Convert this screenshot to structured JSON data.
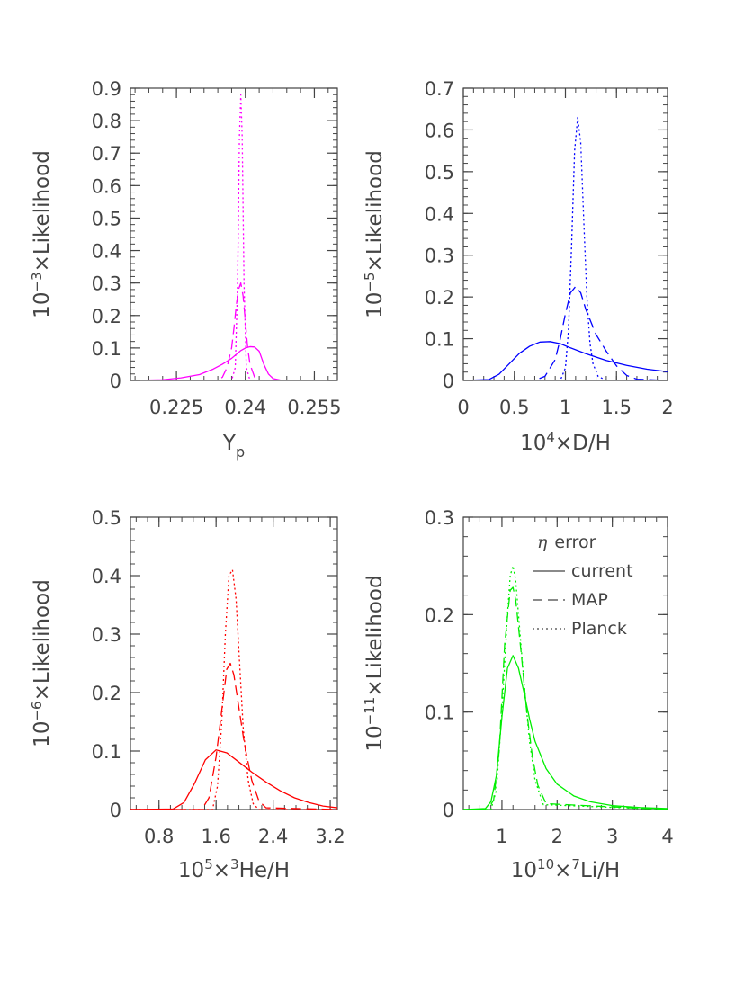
{
  "chart_data": [
    {
      "type": "line",
      "panel": "top-left",
      "color": "#ff00ff",
      "xlabel": "Y",
      "xlabel_sub": "p",
      "ylabel_prefix": "10",
      "ylabel_exp": "−3",
      "ylabel_suffix": "×Likelihood",
      "xlim": [
        0.215,
        0.26
      ],
      "ylim": [
        0,
        0.9
      ],
      "x_ticks": [
        {
          "value": 0.225,
          "label": "0.225"
        },
        {
          "value": 0.24,
          "label": "0.24"
        },
        {
          "value": 0.255,
          "label": "0.255"
        }
      ],
      "y_ticks": [
        {
          "value": 0,
          "label": "0"
        },
        {
          "value": 0.1,
          "label": "0.1"
        },
        {
          "value": 0.2,
          "label": "0.2"
        },
        {
          "value": 0.3,
          "label": "0.3"
        },
        {
          "value": 0.4,
          "label": "0.4"
        },
        {
          "value": 0.5,
          "label": "0.5"
        },
        {
          "value": 0.6,
          "label": "0.6"
        },
        {
          "value": 0.7,
          "label": "0.7"
        },
        {
          "value": 0.8,
          "label": "0.8"
        },
        {
          "value": 0.9,
          "label": "0.9"
        }
      ],
      "series": [
        {
          "style": "solid",
          "x": [
            0.215,
            0.222,
            0.226,
            0.23,
            0.233,
            0.235,
            0.237,
            0.238,
            0.239,
            0.24,
            0.241,
            0.242,
            0.243,
            0.2435,
            0.244,
            0.245,
            0.246,
            0.248,
            0.25,
            0.26
          ],
          "y": [
            0,
            0.002,
            0.008,
            0.018,
            0.035,
            0.05,
            0.068,
            0.08,
            0.092,
            0.1,
            0.104,
            0.103,
            0.09,
            0.07,
            0.05,
            0.02,
            0.006,
            0,
            0,
            0
          ]
        },
        {
          "style": "dashed",
          "x": [
            0.215,
            0.234,
            0.235,
            0.236,
            0.237,
            0.2375,
            0.238,
            0.2385,
            0.239,
            0.2395,
            0.24,
            0.2405,
            0.241,
            0.242,
            0.243,
            0.26
          ],
          "y": [
            0,
            0,
            0.01,
            0.04,
            0.1,
            0.16,
            0.23,
            0.28,
            0.3,
            0.26,
            0.18,
            0.1,
            0.05,
            0.01,
            0,
            0
          ]
        },
        {
          "style": "dotted",
          "x": [
            0.215,
            0.237,
            0.2378,
            0.2383,
            0.2387,
            0.239,
            0.2393,
            0.2397,
            0.2402,
            0.241,
            0.26
          ],
          "y": [
            0,
            0,
            0.04,
            0.3,
            0.75,
            0.88,
            0.75,
            0.3,
            0.04,
            0,
            0
          ]
        }
      ]
    },
    {
      "type": "line",
      "panel": "top-right",
      "color": "#0000ff",
      "xlabel_prefix": "10",
      "xlabel_exp": "4",
      "xlabel_suffix": "×D/H",
      "ylabel_prefix": "10",
      "ylabel_exp": "−5",
      "ylabel_suffix": "×Likelihood",
      "xlim": [
        0,
        2
      ],
      "ylim": [
        0,
        0.7
      ],
      "x_ticks": [
        {
          "value": 0,
          "label": "0"
        },
        {
          "value": 0.5,
          "label": "0.5"
        },
        {
          "value": 1,
          "label": "1"
        },
        {
          "value": 1.5,
          "label": "1.5"
        },
        {
          "value": 2,
          "label": "2"
        }
      ],
      "y_ticks": [
        {
          "value": 0,
          "label": "0"
        },
        {
          "value": 0.1,
          "label": "0.1"
        },
        {
          "value": 0.2,
          "label": "0.2"
        },
        {
          "value": 0.3,
          "label": "0.3"
        },
        {
          "value": 0.4,
          "label": "0.4"
        },
        {
          "value": 0.5,
          "label": "0.5"
        },
        {
          "value": 0.6,
          "label": "0.6"
        },
        {
          "value": 0.7,
          "label": "0.7"
        }
      ],
      "series": [
        {
          "style": "solid",
          "x": [
            0,
            0.25,
            0.35,
            0.45,
            0.55,
            0.65,
            0.75,
            0.85,
            0.95,
            1.05,
            1.2,
            1.4,
            1.6,
            1.8,
            2
          ],
          "y": [
            0,
            0.002,
            0.015,
            0.04,
            0.065,
            0.082,
            0.092,
            0.093,
            0.088,
            0.078,
            0.064,
            0.048,
            0.036,
            0.027,
            0.021
          ]
        },
        {
          "style": "dashed",
          "x": [
            0,
            0.7,
            0.8,
            0.9,
            0.95,
            1,
            1.05,
            1.1,
            1.15,
            1.2,
            1.3,
            1.4,
            1.5,
            1.6,
            1.7,
            2
          ],
          "y": [
            0,
            0,
            0.01,
            0.05,
            0.1,
            0.16,
            0.21,
            0.225,
            0.21,
            0.17,
            0.11,
            0.07,
            0.035,
            0.012,
            0.003,
            0
          ]
        },
        {
          "style": "dotted",
          "x": [
            0,
            0.95,
            1,
            1.03,
            1.06,
            1.09,
            1.12,
            1.15,
            1.18,
            1.21,
            1.24,
            1.27,
            1.32,
            1.4,
            2
          ],
          "y": [
            0,
            0,
            0.03,
            0.12,
            0.32,
            0.55,
            0.63,
            0.57,
            0.38,
            0.2,
            0.09,
            0.04,
            0.01,
            0,
            0
          ]
        }
      ]
    },
    {
      "type": "line",
      "panel": "bottom-left",
      "color": "#ff0000",
      "xlabel_prefix": "10",
      "xlabel_exp": "5",
      "xlabel_mid": "×",
      "xlabel_exp2": "3",
      "xlabel_suffix": "He/H",
      "ylabel_prefix": "10",
      "ylabel_exp": "−6",
      "ylabel_suffix": "×Likelihood",
      "xlim": [
        0.4,
        3.3
      ],
      "ylim": [
        0,
        0.5
      ],
      "x_ticks": [
        {
          "value": 0.8,
          "label": "0.8"
        },
        {
          "value": 1.6,
          "label": "1.6"
        },
        {
          "value": 2.4,
          "label": "2.4"
        },
        {
          "value": 3.2,
          "label": "3.2"
        }
      ],
      "y_ticks": [
        {
          "value": 0,
          "label": "0"
        },
        {
          "value": 0.1,
          "label": "0.1"
        },
        {
          "value": 0.2,
          "label": "0.2"
        },
        {
          "value": 0.3,
          "label": "0.3"
        },
        {
          "value": 0.4,
          "label": "0.4"
        },
        {
          "value": 0.5,
          "label": "0.5"
        }
      ],
      "series": [
        {
          "style": "solid",
          "x": [
            0.4,
            1.0,
            1.15,
            1.3,
            1.45,
            1.6,
            1.75,
            1.9,
            2.1,
            2.3,
            2.5,
            2.7,
            2.9,
            3.1,
            3.3
          ],
          "y": [
            0,
            0.001,
            0.012,
            0.045,
            0.085,
            0.102,
            0.097,
            0.083,
            0.064,
            0.047,
            0.032,
            0.02,
            0.012,
            0.006,
            0.003
          ]
        },
        {
          "style": "dashed",
          "x": [
            0.4,
            1.4,
            1.5,
            1.6,
            1.7,
            1.75,
            1.8,
            1.85,
            1.9,
            2.0,
            2.1,
            2.2,
            2.3,
            3.3
          ],
          "y": [
            0,
            0,
            0.02,
            0.09,
            0.19,
            0.24,
            0.25,
            0.23,
            0.19,
            0.11,
            0.05,
            0.015,
            0.003,
            0
          ]
        },
        {
          "style": "dotted",
          "x": [
            0.4,
            1.55,
            1.62,
            1.68,
            1.73,
            1.78,
            1.83,
            1.88,
            1.93,
            1.98,
            2.05,
            2.12,
            2.2,
            3.3
          ],
          "y": [
            0,
            0,
            0.04,
            0.15,
            0.3,
            0.4,
            0.41,
            0.36,
            0.25,
            0.14,
            0.05,
            0.01,
            0,
            0
          ]
        }
      ]
    },
    {
      "type": "line",
      "panel": "bottom-right",
      "color": "#00ee00",
      "xlabel_prefix": "10",
      "xlabel_exp": "10",
      "xlabel_mid": "×",
      "xlabel_exp2": "7",
      "xlabel_suffix": "Li/H",
      "ylabel_prefix": "10",
      "ylabel_exp": "−11",
      "ylabel_suffix": "×Likelihood",
      "xlim": [
        0.3,
        4
      ],
      "ylim": [
        0,
        0.3
      ],
      "x_ticks": [
        {
          "value": 1,
          "label": "1"
        },
        {
          "value": 2,
          "label": "2"
        },
        {
          "value": 3,
          "label": "3"
        },
        {
          "value": 4,
          "label": "4"
        }
      ],
      "y_ticks": [
        {
          "value": 0,
          "label": "0"
        },
        {
          "value": 0.1,
          "label": "0.1"
        },
        {
          "value": 0.2,
          "label": "0.2"
        },
        {
          "value": 0.3,
          "label": "0.3"
        }
      ],
      "legend": {
        "title_symbol": "η",
        "title_text": "error",
        "entries": [
          {
            "style": "solid",
            "label": "current"
          },
          {
            "style": "dashed",
            "label": "MAP"
          },
          {
            "style": "dotted",
            "label": "Planck"
          }
        ]
      },
      "series": [
        {
          "style": "solid",
          "x": [
            0.3,
            0.7,
            0.8,
            0.9,
            1.0,
            1.1,
            1.2,
            1.3,
            1.4,
            1.5,
            1.6,
            1.8,
            2.0,
            2.3,
            2.6,
            3.0,
            3.5,
            4.0
          ],
          "y": [
            0,
            0.001,
            0.008,
            0.035,
            0.095,
            0.145,
            0.158,
            0.145,
            0.12,
            0.093,
            0.07,
            0.042,
            0.026,
            0.014,
            0.008,
            0.004,
            0.002,
            0.001
          ]
        },
        {
          "style": "dashed",
          "x": [
            0.3,
            0.75,
            0.85,
            0.95,
            1.05,
            1.15,
            1.2,
            1.25,
            1.35,
            1.45,
            1.55,
            1.65,
            1.8,
            4.0
          ],
          "y": [
            0,
            0,
            0.01,
            0.06,
            0.17,
            0.225,
            0.228,
            0.215,
            0.16,
            0.1,
            0.055,
            0.025,
            0.006,
            0
          ]
        },
        {
          "style": "dotted",
          "x": [
            0.3,
            0.8,
            0.9,
            1.0,
            1.1,
            1.15,
            1.2,
            1.25,
            1.3,
            1.4,
            1.5,
            1.6,
            1.75,
            4.0
          ],
          "y": [
            0,
            0,
            0.02,
            0.1,
            0.2,
            0.24,
            0.25,
            0.235,
            0.2,
            0.13,
            0.07,
            0.03,
            0.005,
            0
          ]
        }
      ]
    }
  ]
}
